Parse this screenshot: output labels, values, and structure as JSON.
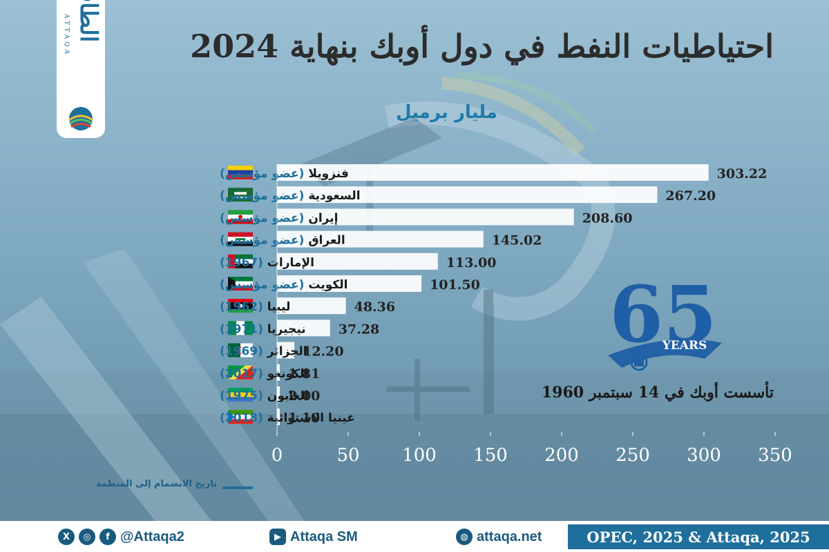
{
  "brand": {
    "logo_text": "الطاقة",
    "logo_latin": "ATTAQA"
  },
  "title": "احتياطيات النفط في دول أوبك بنهاية 2024",
  "subtitle": "مليار برميل",
  "badge": {
    "number": "65",
    "years_label": "YEARS"
  },
  "founded_note": "تأسست أوبك في 14 سبتمبر 1960",
  "legend": {
    "text": "تاريخ الانضمام إلى المنظمة"
  },
  "colors": {
    "bar": "#ffffff",
    "accent": "#1f7aa8",
    "join_label": "#1f6f9c",
    "source_bg": "#1f6f9c"
  },
  "chart_data": {
    "type": "bar",
    "orientation": "horizontal",
    "title": "احتياطيات النفط في دول أوبك بنهاية 2024",
    "subtitle": "مليار برميل",
    "xlim": [
      0,
      350
    ],
    "x_ticks": [
      "0",
      "50",
      "100",
      "150",
      "200",
      "250",
      "300",
      "350"
    ],
    "categories": [
      {
        "name": "فنزويلا",
        "tag": "(عضو مؤسس)",
        "value": 303.22,
        "label": "303.22",
        "flag": "venezuela"
      },
      {
        "name": "السعودية",
        "tag": "(عضو مؤسس)",
        "value": 267.2,
        "label": "267.20",
        "flag": "saudi-arabia"
      },
      {
        "name": "إيران",
        "tag": "(عضو مؤسس)",
        "value": 208.6,
        "label": "208.60",
        "flag": "iran"
      },
      {
        "name": "العراق",
        "tag": "(عضو مؤسس)",
        "value": 145.02,
        "label": "145.02",
        "flag": "iraq"
      },
      {
        "name": "الإمارات",
        "tag": "(1967)",
        "value": 113.0,
        "label": "113.00",
        "flag": "uae"
      },
      {
        "name": "الكويت",
        "tag": "(عضو مؤسس)",
        "value": 101.5,
        "label": "101.50",
        "flag": "kuwait"
      },
      {
        "name": "ليبيا",
        "tag": "(1962)",
        "value": 48.36,
        "label": "48.36",
        "flag": "libya"
      },
      {
        "name": "نيجيريا",
        "tag": "(1971)",
        "value": 37.28,
        "label": "37.28",
        "flag": "nigeria"
      },
      {
        "name": "الجزائر",
        "tag": "(1969)",
        "value": 12.2,
        "label": "12.20",
        "flag": "algeria"
      },
      {
        "name": "الكونغو",
        "tag": "(2017)",
        "value": 1.81,
        "label": "1.81",
        "flag": "congo"
      },
      {
        "name": "الغابون",
        "tag": "(1975)",
        "value": 2.0,
        "label": "2.00",
        "flag": "gabon"
      },
      {
        "name": "غينيا الاستوائية",
        "tag": "(2018)",
        "value": 1.1,
        "label": "1.10",
        "flag": "equatorial-guinea"
      }
    ]
  },
  "footer": {
    "social_handle": "@Attaqa2",
    "youtube": "Attaqa SM",
    "website": "attaqa.net",
    "source": "OPEC, 2025 & Attaqa, 2025",
    "icons": [
      "x-icon",
      "instagram-icon",
      "facebook-icon",
      "youtube-icon",
      "globe-icon"
    ]
  }
}
